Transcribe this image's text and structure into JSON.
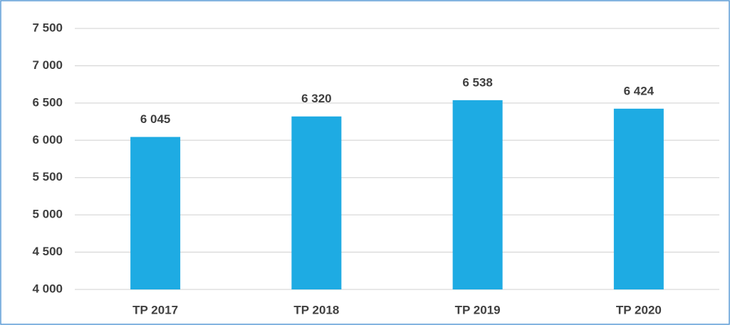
{
  "chart_data": {
    "type": "bar",
    "categories": [
      "TP 2017",
      "TP 2018",
      "TP 2019",
      "TP 2020"
    ],
    "values": [
      6045,
      6320,
      6538,
      6424
    ],
    "value_labels": [
      "6 045",
      "6 320",
      "6 538",
      "6 424"
    ],
    "color": "#1eabe3",
    "ylim": [
      4000,
      7500
    ],
    "yticks": [
      {
        "value": 4000,
        "label": "4 000"
      },
      {
        "value": 4500,
        "label": "4 500"
      },
      {
        "value": 5000,
        "label": "5 000"
      },
      {
        "value": 5500,
        "label": "5 500"
      },
      {
        "value": 6000,
        "label": "6 000"
      },
      {
        "value": 6500,
        "label": "6 500"
      },
      {
        "value": 7000,
        "label": "7 000"
      },
      {
        "value": 7500,
        "label": "7 500"
      }
    ],
    "grid": true
  }
}
